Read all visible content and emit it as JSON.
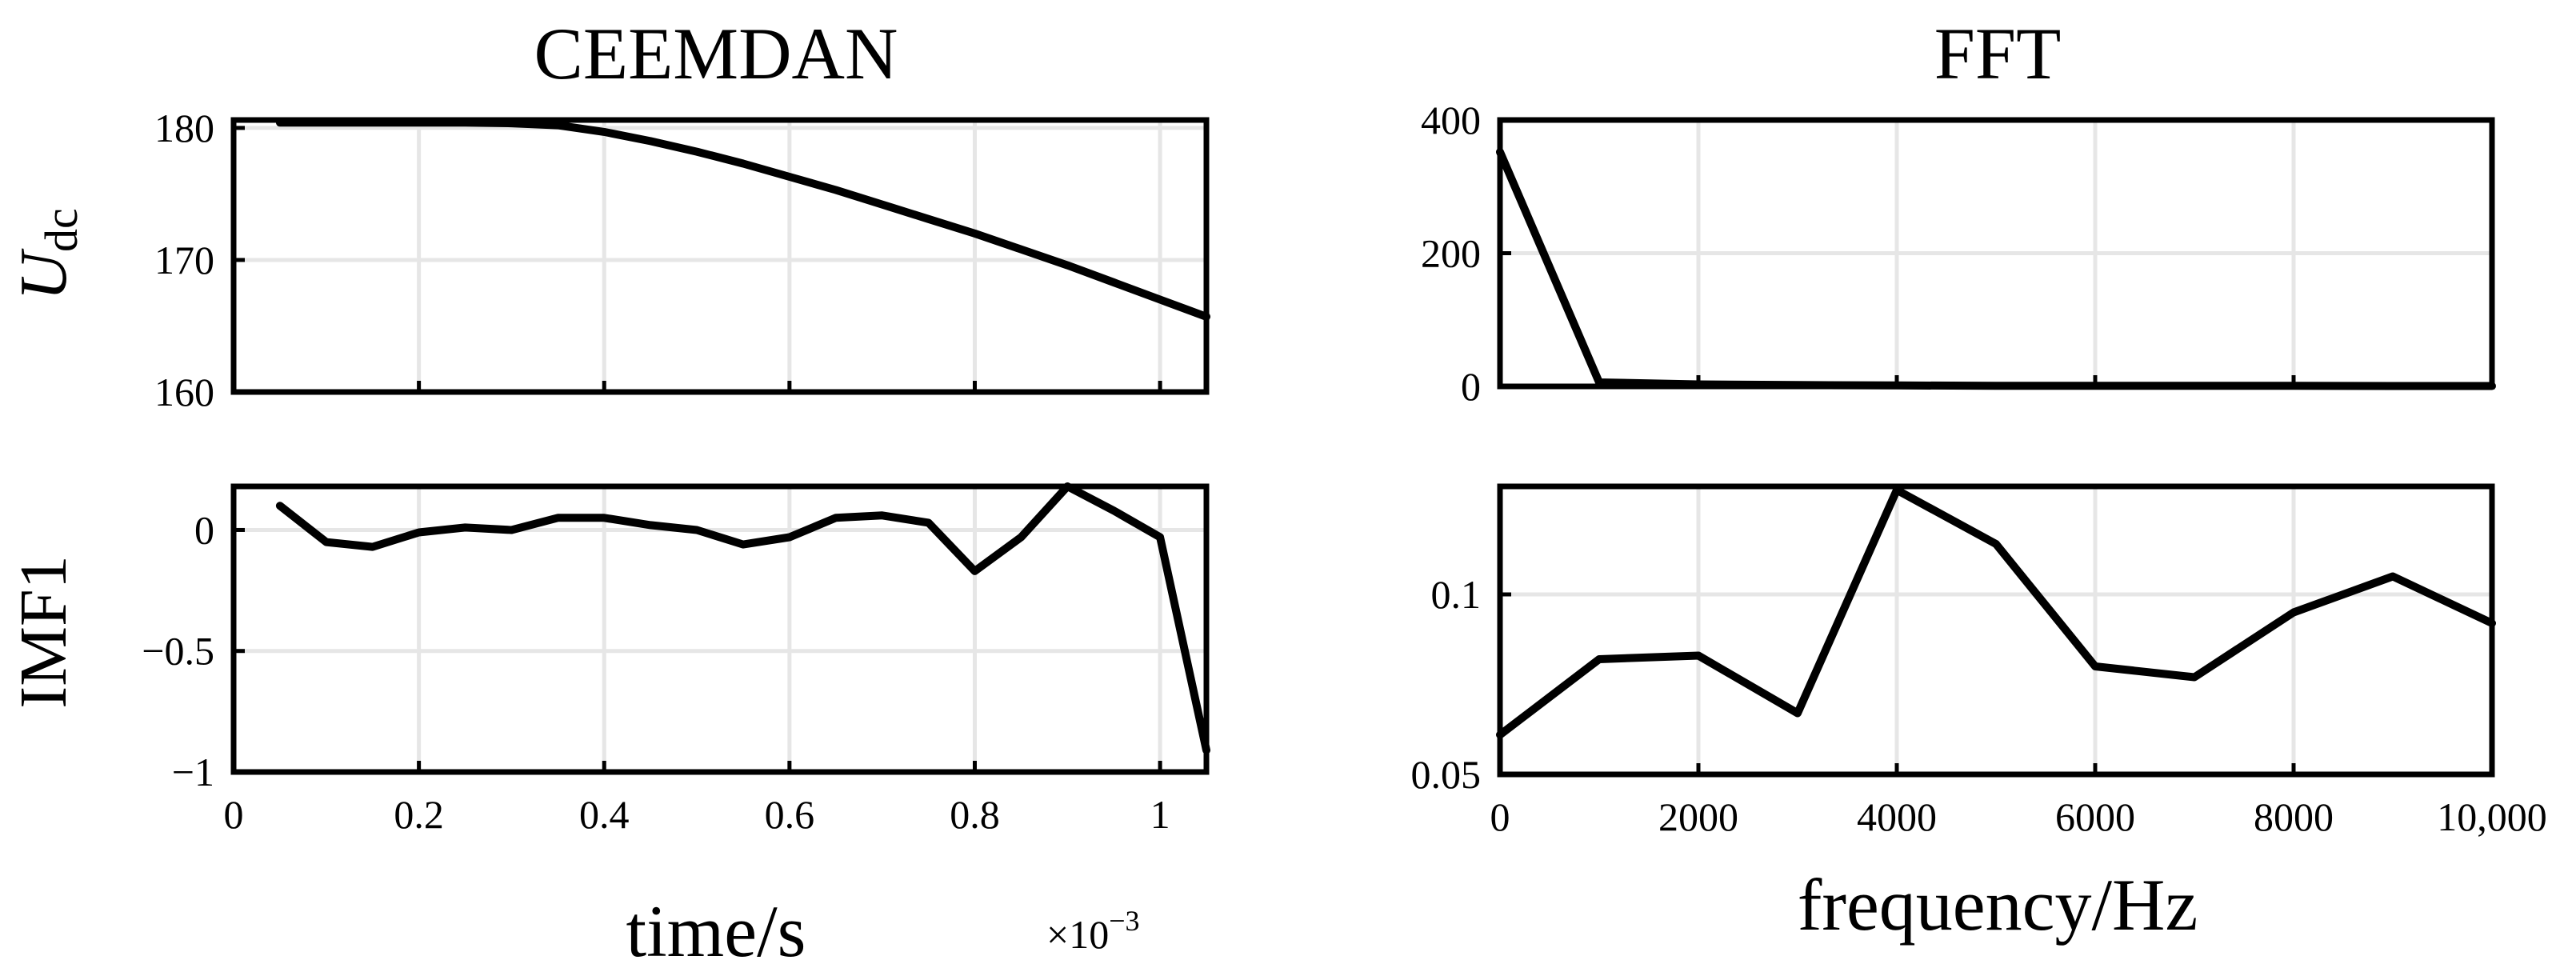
{
  "figure": {
    "left_title": "CEEMDAN",
    "right_title": "FFT",
    "left_xlabel": "time/s",
    "right_xlabel": "frequency/Hz",
    "x_multiplier_base": "×10",
    "x_multiplier_exp": "−3"
  },
  "chart_data": [
    {
      "type": "line",
      "title": "CEEMDAN",
      "ylabel_main": "U",
      "ylabel_sub": "dc",
      "xlim": [
        0,
        1.05
      ],
      "ylim": [
        160,
        180.6
      ],
      "x_scale_note": "×10^-3",
      "xticks": [
        0,
        0.2,
        0.4,
        0.6,
        0.8,
        1
      ],
      "xtick_labels": [
        "",
        "",
        "",
        "",
        "",
        ""
      ],
      "yticks": [
        160,
        170,
        180
      ],
      "ytick_labels": [
        "160",
        "170",
        "180"
      ],
      "grid": true,
      "x": [
        0.05,
        0.1,
        0.15,
        0.2,
        0.25,
        0.3,
        0.35,
        0.4,
        0.45,
        0.5,
        0.55,
        0.6,
        0.65,
        0.7,
        0.75,
        0.8,
        0.85,
        0.9,
        0.95,
        1.0,
        1.05
      ],
      "y": [
        180.4,
        180.4,
        180.4,
        180.4,
        180.4,
        180.35,
        180.2,
        179.7,
        179.0,
        178.2,
        177.3,
        176.3,
        175.3,
        174.2,
        173.1,
        172.0,
        170.8,
        169.6,
        168.3,
        167.0,
        165.7
      ]
    },
    {
      "type": "line",
      "title": "",
      "ylabel": "IMF1",
      "xlim": [
        0,
        1.05
      ],
      "ylim": [
        -1,
        0.18
      ],
      "xticks": [
        0,
        0.2,
        0.4,
        0.6,
        0.8,
        1
      ],
      "xtick_labels": [
        "0",
        "0.2",
        "0.4",
        "0.6",
        "0.8",
        "1"
      ],
      "yticks": [
        -1,
        -0.5,
        0
      ],
      "ytick_labels": [
        "−1",
        "−0.5",
        "0"
      ],
      "grid": true,
      "x": [
        0.05,
        0.1,
        0.15,
        0.2,
        0.25,
        0.3,
        0.35,
        0.4,
        0.45,
        0.5,
        0.55,
        0.6,
        0.65,
        0.7,
        0.75,
        0.8,
        0.85,
        0.9,
        0.95,
        1.0,
        1.05
      ],
      "y": [
        0.1,
        -0.05,
        -0.07,
        -0.01,
        0.01,
        0.0,
        0.05,
        0.05,
        0.02,
        0.0,
        -0.06,
        -0.03,
        0.05,
        0.06,
        0.03,
        -0.17,
        -0.03,
        0.18,
        0.08,
        -0.03,
        -0.91
      ]
    },
    {
      "type": "line",
      "title": "FFT",
      "ylabel": "",
      "xlim": [
        0,
        10000
      ],
      "ylim": [
        0,
        400
      ],
      "xticks": [
        0,
        2000,
        4000,
        6000,
        8000,
        10000
      ],
      "xtick_labels": [
        "",
        "",
        "",
        "",
        "",
        ""
      ],
      "yticks": [
        0,
        200,
        400
      ],
      "ytick_labels": [
        "0",
        "200",
        "400"
      ],
      "grid": true,
      "x": [
        0,
        1000,
        2000,
        3000,
        4000,
        5000,
        6000,
        7000,
        8000,
        9000,
        10000
      ],
      "y": [
        352,
        6,
        3,
        2,
        1.5,
        1,
        1,
        0.8,
        0.8,
        0.6,
        0.6
      ]
    },
    {
      "type": "line",
      "title": "",
      "ylabel": "",
      "xlim": [
        0,
        10000
      ],
      "ylim": [
        0.05,
        0.13
      ],
      "xticks": [
        0,
        2000,
        4000,
        6000,
        8000,
        10000
      ],
      "xtick_labels": [
        "0",
        "2000",
        "4000",
        "6000",
        "8000",
        "10,000"
      ],
      "yticks": [
        0.05,
        0.1
      ],
      "ytick_labels": [
        "0.05",
        "0.1"
      ],
      "grid": true,
      "x": [
        0,
        1000,
        2000,
        3000,
        4000,
        5000,
        6000,
        7000,
        8000,
        9000,
        10000
      ],
      "y": [
        0.061,
        0.082,
        0.083,
        0.067,
        0.129,
        0.114,
        0.08,
        0.077,
        0.095,
        0.105,
        0.092
      ]
    }
  ]
}
